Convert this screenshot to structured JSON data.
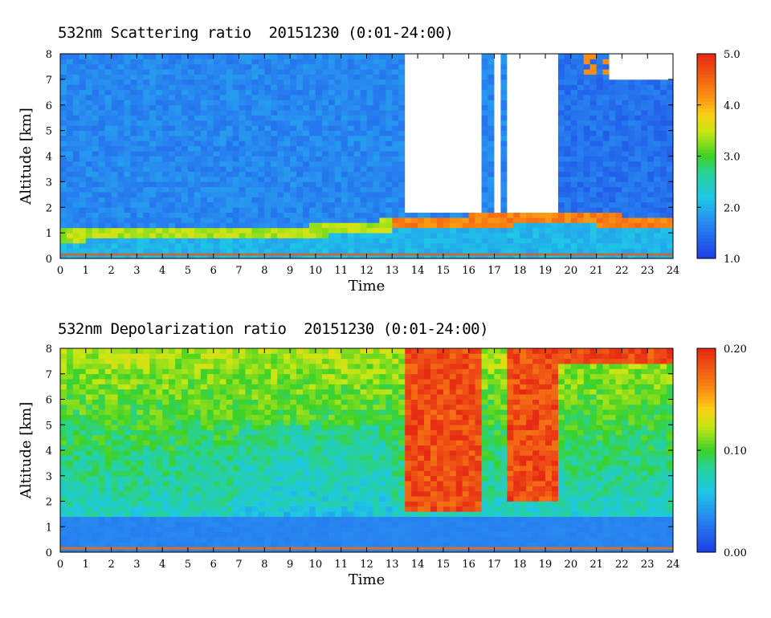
{
  "chart_data": [
    {
      "type": "heatmap",
      "title": "532nm Scattering ratio  20151230 (0:01-24:00)",
      "xlabel": "Time",
      "ylabel": "Altitude [km]",
      "xlim": [
        0,
        24
      ],
      "ylim": [
        0,
        8
      ],
      "x_ticks": [
        "0",
        "1",
        "2",
        "3",
        "4",
        "5",
        "6",
        "7",
        "8",
        "9",
        "10",
        "11",
        "12",
        "13",
        "14",
        "15",
        "16",
        "17",
        "18",
        "19",
        "20",
        "21",
        "22",
        "23",
        "24"
      ],
      "y_ticks": [
        "0",
        "1",
        "2",
        "3",
        "4",
        "5",
        "6",
        "7",
        "8"
      ],
      "colorbar": {
        "min": 1.0,
        "max": 5.0,
        "ticks": [
          "1.0",
          "2.0",
          "3.0",
          "4.0",
          "5.0"
        ]
      },
      "features": {
        "background_value": 1.5,
        "boundary_layer": {
          "x": [
            0,
            3,
            6,
            9,
            12,
            13.4,
            16,
            19.5,
            21,
            24
          ],
          "top_km": [
            1.1,
            1.25,
            1.25,
            1.25,
            1.45,
            1.6,
            1.7,
            1.8,
            1.75,
            1.6
          ],
          "value": 3.2
        },
        "cloud_blocks": [
          {
            "x0": 13.4,
            "x1": 16.5,
            "base_km": 1.8,
            "top_km": 8
          },
          {
            "x0": 17.1,
            "x1": 17.3,
            "base_km": 1.85,
            "top_km": 8
          },
          {
            "x0": 17.5,
            "x1": 19.4,
            "base_km": 1.85,
            "top_km": 8
          }
        ]
      }
    },
    {
      "type": "heatmap",
      "title": "532nm Depolarization ratio  20151230 (0:01-24:00)",
      "xlabel": "Time",
      "ylabel": "Altitude [km]",
      "xlim": [
        0,
        24
      ],
      "ylim": [
        0,
        8
      ],
      "x_ticks": [
        "0",
        "1",
        "2",
        "3",
        "4",
        "5",
        "6",
        "7",
        "8",
        "9",
        "10",
        "11",
        "12",
        "13",
        "14",
        "15",
        "16",
        "17",
        "18",
        "19",
        "20",
        "21",
        "22",
        "23",
        "24"
      ],
      "y_ticks": [
        "0",
        "1",
        "2",
        "3",
        "4",
        "5",
        "6",
        "7",
        "8"
      ],
      "colorbar": {
        "min": 0.0,
        "max": 0.2,
        "ticks": [
          "0.00",
          "0.10",
          "0.20"
        ]
      },
      "features": {
        "boundary_layer_value": 0.03,
        "cloud_blocks": [
          {
            "x0": 13.4,
            "x1": 16.5,
            "base_km": 1.7,
            "top_km": 8
          },
          {
            "x0": 17.5,
            "x1": 19.4,
            "base_km": 2.0,
            "top_km": 8
          }
        ]
      }
    }
  ]
}
